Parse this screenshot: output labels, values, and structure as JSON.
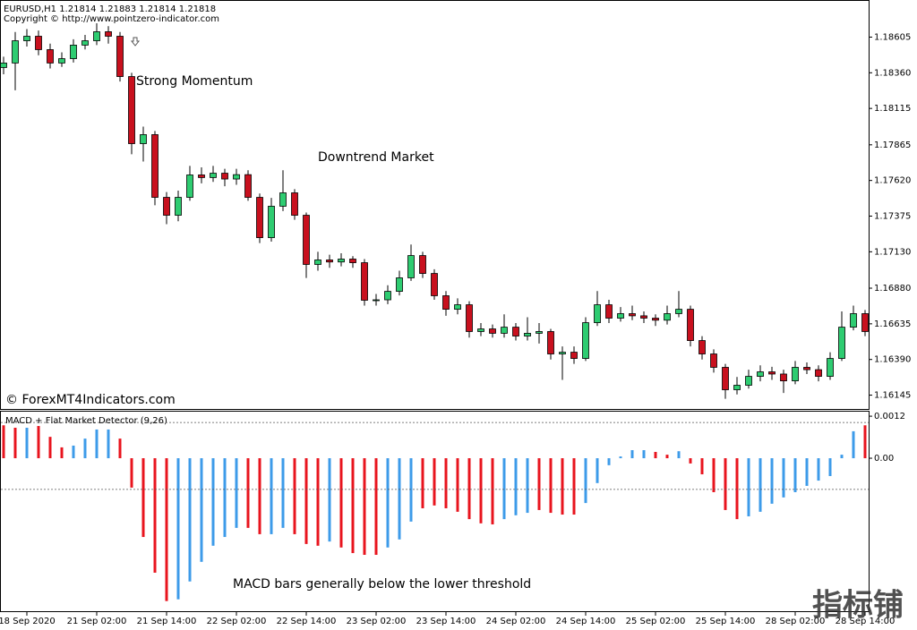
{
  "header": {
    "symbol_line": "EURUSD,H1  1.21814 1.21883 1.21814 1.21818",
    "copyright": "Copyright © http://www.pointzero-indicator.com"
  },
  "watermark": "© ForexMT4Indicators.com",
  "corner_mark": "指标铺",
  "chart_data": [
    {
      "type": "candlestick",
      "categories": [
        null,
        null,
        "18 Sep 2020",
        null,
        null,
        null,
        null,
        null,
        "21 Sep 02:00",
        null,
        null,
        null,
        null,
        null,
        "21 Sep 14:00",
        null,
        null,
        null,
        null,
        null,
        "22 Sep 02:00",
        null,
        null,
        null,
        null,
        null,
        "22 Sep 14:00",
        null,
        null,
        null,
        null,
        null,
        "23 Sep 02:00",
        null,
        null,
        null,
        null,
        null,
        "23 Sep 14:00",
        null,
        null,
        null,
        null,
        null,
        "24 Sep 02:00",
        null,
        null,
        null,
        null,
        null,
        "24 Sep 14:00",
        null,
        null,
        null,
        null,
        null,
        "25 Sep 02:00",
        null,
        null,
        null,
        null,
        null,
        "25 Sep 14:00",
        null,
        null,
        null,
        null,
        null,
        "28 Sep 02:00",
        null,
        null,
        null,
        null,
        null,
        "28 Sep 14:00"
      ],
      "open": [
        1.18396,
        1.18427,
        1.1858,
        1.18611,
        1.18519,
        1.18427,
        1.18457,
        1.1855,
        1.1858,
        1.18642,
        1.18611,
        1.18334,
        1.17873,
        1.17935,
        1.17504,
        1.17381,
        1.17504,
        1.17658,
        1.1764,
        1.1767,
        1.1763,
        1.1766,
        1.17504,
        1.17227,
        1.17443,
        1.17535,
        1.17381,
        1.17043,
        1.17074,
        1.1706,
        1.1708,
        1.17055,
        1.16797,
        1.168,
        1.16858,
        1.16951,
        1.17104,
        1.16981,
        1.16828,
        1.16735,
        1.16766,
        1.16582,
        1.166,
        1.1657,
        1.16612,
        1.16551,
        1.1657,
        1.16582,
        1.16428,
        1.1644,
        1.16397,
        1.16643,
        1.16766,
        1.16674,
        1.16705,
        1.1669,
        1.16674,
        1.1666,
        1.16705,
        1.16735,
        1.1652,
        1.16428,
        1.16336,
        1.16182,
        1.16213,
        1.16274,
        1.16305,
        1.1629,
        1.16243,
        1.16336,
        1.1632,
        1.16274,
        1.16397,
        1.16612,
        1.16705
      ],
      "high": [
        1.1847,
        1.1864,
        1.1866,
        1.1865,
        1.1856,
        1.185,
        1.1859,
        1.1862,
        1.187,
        1.1868,
        1.1864,
        1.1836,
        1.1799,
        1.1796,
        1.1754,
        1.1755,
        1.1772,
        1.1771,
        1.1772,
        1.177,
        1.177,
        1.1769,
        1.1753,
        1.175,
        1.1769,
        1.1756,
        1.174,
        1.1713,
        1.1711,
        1.1712,
        1.171,
        1.1708,
        1.1684,
        1.169,
        1.17,
        1.1718,
        1.1713,
        1.1701,
        1.1686,
        1.1681,
        1.1679,
        1.1664,
        1.1663,
        1.167,
        1.1664,
        1.1668,
        1.1664,
        1.166,
        1.1648,
        1.1648,
        1.1668,
        1.1686,
        1.168,
        1.1675,
        1.1676,
        1.1672,
        1.167,
        1.1676,
        1.1686,
        1.1676,
        1.1655,
        1.1646,
        1.1636,
        1.1627,
        1.1632,
        1.1635,
        1.1634,
        1.1632,
        1.1638,
        1.1637,
        1.1635,
        1.1644,
        1.1672,
        1.1676,
        1.1673
      ],
      "low": [
        1.1835,
        1.1824,
        1.1854,
        1.1848,
        1.1839,
        1.184,
        1.1843,
        1.1852,
        1.1855,
        1.1856,
        1.183,
        1.178,
        1.1775,
        1.1745,
        1.1732,
        1.1734,
        1.1748,
        1.176,
        1.1761,
        1.1758,
        1.1759,
        1.1748,
        1.1719,
        1.172,
        1.1741,
        1.1735,
        1.1695,
        1.17,
        1.1702,
        1.1703,
        1.1702,
        1.1676,
        1.1676,
        1.1677,
        1.1683,
        1.1693,
        1.1695,
        1.168,
        1.1669,
        1.167,
        1.1654,
        1.1655,
        1.1654,
        1.1654,
        1.1652,
        1.1652,
        1.165,
        1.1639,
        1.1625,
        1.1636,
        1.1638,
        1.1662,
        1.1664,
        1.1665,
        1.1666,
        1.1664,
        1.1662,
        1.1663,
        1.1668,
        1.1648,
        1.1639,
        1.163,
        1.1612,
        1.1615,
        1.1619,
        1.1624,
        1.1625,
        1.1616,
        1.1622,
        1.1629,
        1.1624,
        1.1625,
        1.1638,
        1.1659,
        1.1655
      ],
      "close": [
        1.18427,
        1.1858,
        1.18611,
        1.18519,
        1.18427,
        1.18457,
        1.1855,
        1.1858,
        1.18642,
        1.18611,
        1.18334,
        1.17873,
        1.17935,
        1.17504,
        1.17381,
        1.17504,
        1.17658,
        1.1764,
        1.1767,
        1.1763,
        1.1766,
        1.17504,
        1.17227,
        1.17443,
        1.17535,
        1.17381,
        1.17043,
        1.17074,
        1.1706,
        1.1708,
        1.17055,
        1.16797,
        1.168,
        1.16858,
        1.16951,
        1.17104,
        1.16981,
        1.16828,
        1.16735,
        1.16766,
        1.16582,
        1.166,
        1.1657,
        1.16612,
        1.16551,
        1.1657,
        1.16582,
        1.16428,
        1.1644,
        1.16397,
        1.16643,
        1.16766,
        1.16674,
        1.16705,
        1.1669,
        1.16674,
        1.1666,
        1.16705,
        1.16735,
        1.1652,
        1.16428,
        1.16336,
        1.16182,
        1.16213,
        1.16274,
        1.16305,
        1.1629,
        1.16243,
        1.16336,
        1.1632,
        1.16274,
        1.16397,
        1.16612,
        1.16705,
        1.16582
      ],
      "up_color": "#2ecc71",
      "down_color": "#c8101e",
      "wick_color": "#000000",
      "ylim": [
        1.1605,
        1.1886
      ],
      "yticks": [
        1.18605,
        {
          "value": 1.1836,
          "label": "1.18360"
        },
        1.18115,
        1.17865,
        {
          "value": 1.1762,
          "label": "1.17620"
        },
        1.17375,
        {
          "value": 1.1713,
          "label": "1.17130"
        },
        {
          "value": 1.1688,
          "label": "1.16880"
        },
        1.16635,
        {
          "value": 1.1639,
          "label": "1.16390"
        },
        1.16145
      ],
      "annotations": [
        "Strong Momentum",
        "Downtrend Market"
      ]
    },
    {
      "type": "bar",
      "title": "MACD + Flat Market Detector (9,26)",
      "values": [
        0.00094,
        0.00087,
        0.00087,
        0.00092,
        0.00061,
        0.00031,
        0.00036,
        0.00056,
        0.00082,
        0.00082,
        0.00056,
        -0.00084,
        -0.00225,
        -0.00327,
        -0.00408,
        -0.00403,
        -0.00352,
        -0.00296,
        -0.0025,
        -0.00225,
        -0.00199,
        -0.00199,
        -0.00217,
        -0.00217,
        -0.00199,
        -0.00217,
        -0.00245,
        -0.0025,
        -0.00238,
        -0.00255,
        -0.00271,
        -0.00276,
        -0.00276,
        -0.00255,
        -0.00232,
        -0.00181,
        -0.00143,
        -0.00135,
        -0.00143,
        -0.00153,
        -0.00174,
        -0.00186,
        -0.00189,
        -0.00174,
        -0.00163,
        -0.00156,
        -0.00148,
        -0.00156,
        -0.00161,
        -0.00161,
        -0.00128,
        -0.00071,
        -0.0002,
        5e-05,
        0.00023,
        0.00023,
        0.00018,
        0.0001,
        0.0002,
        -0.00015,
        -0.00046,
        -0.00097,
        -0.00148,
        -0.00174,
        -0.00166,
        -0.00153,
        -0.0013,
        -0.00112,
        -0.00097,
        -0.00079,
        -0.00064,
        -0.00051,
        0.0001,
        0.00077,
        0.00094
      ],
      "colors": [
        "#e8141e",
        "#e8141e",
        "#3d9be9",
        "#e8141e",
        "#e8141e",
        "#e8141e",
        "#3d9be9",
        "#3d9be9",
        "#3d9be9",
        "#3d9be9",
        "#e8141e",
        "#e8141e",
        "#e8141e",
        "#e8141e",
        "#e8141e",
        "#3d9be9",
        "#3d9be9",
        "#3d9be9",
        "#3d9be9",
        "#3d9be9",
        "#3d9be9",
        "#e8141e",
        "#e8141e",
        "#3d9be9",
        "#3d9be9",
        "#e8141e",
        "#e8141e",
        "#e8141e",
        "#3d9be9",
        "#e8141e",
        "#e8141e",
        "#e8141e",
        "#e8141e",
        "#3d9be9",
        "#3d9be9",
        "#3d9be9",
        "#e8141e",
        "#e8141e",
        "#e8141e",
        "#e8141e",
        "#e8141e",
        "#e8141e",
        "#e8141e",
        "#3d9be9",
        "#3d9be9",
        "#3d9be9",
        "#e8141e",
        "#e8141e",
        "#e8141e",
        "#e8141e",
        "#3d9be9",
        "#3d9be9",
        "#3d9be9",
        "#3d9be9",
        "#3d9be9",
        "#3d9be9",
        "#e8141e",
        "#e8141e",
        "#3d9be9",
        "#e8141e",
        "#e8141e",
        "#e8141e",
        "#e8141e",
        "#e8141e",
        "#3d9be9",
        "#3d9be9",
        "#3d9be9",
        "#3d9be9",
        "#3d9be9",
        "#3d9be9",
        "#3d9be9",
        "#3d9be9",
        "#3d9be9",
        "#3d9be9",
        "#e8141e"
      ],
      "upper_level": 0.00102,
      "lower_level": -0.00089,
      "ylim": [
        -0.00437,
        0.00133
      ],
      "yticks": [
        0.0012,
        {
          "value": 0,
          "label": "0.00"
        }
      ],
      "annotations": [
        "MACD bars generally below the lower threshold"
      ]
    }
  ]
}
